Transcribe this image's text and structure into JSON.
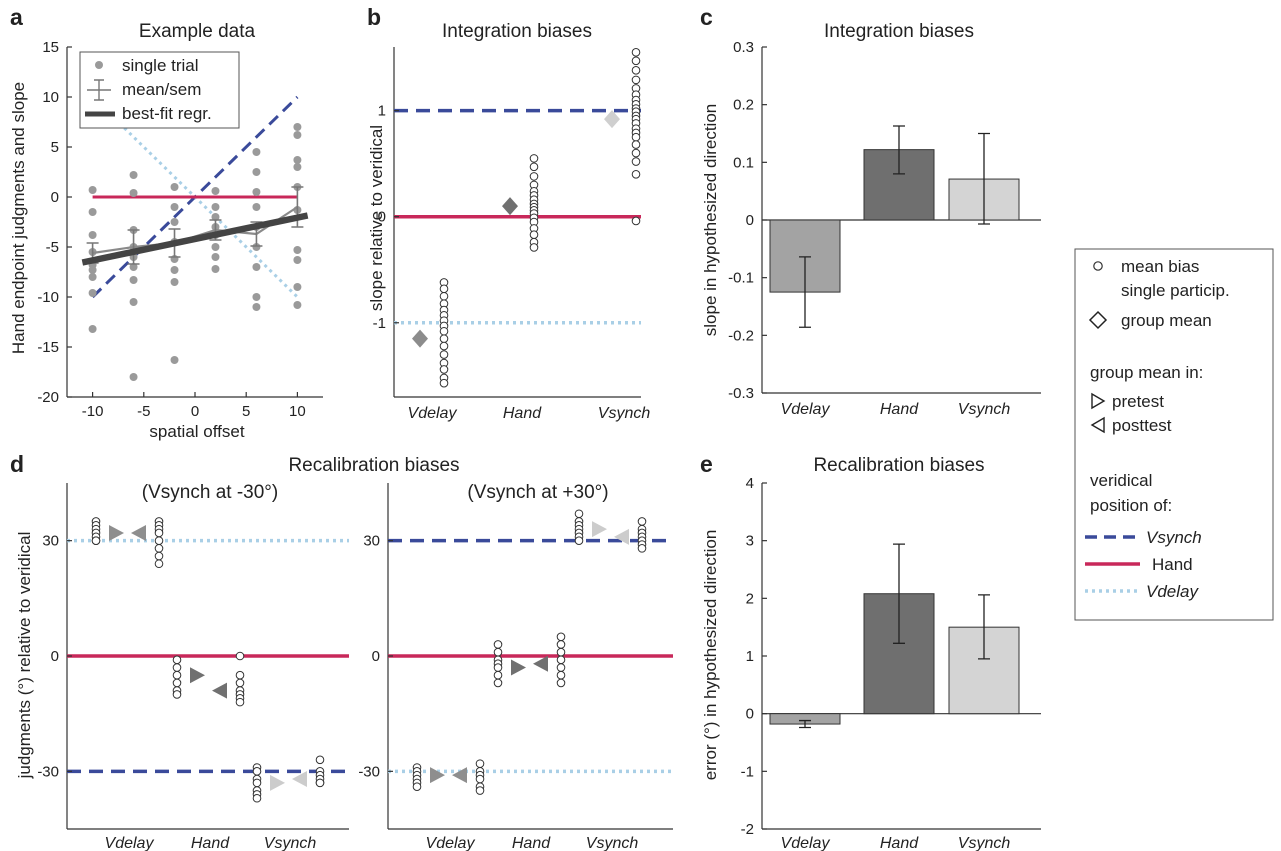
{
  "figure": {
    "panel_letters": [
      "a",
      "b",
      "c",
      "d",
      "e"
    ]
  },
  "colors": {
    "vsynch_line": "#3a4a9a",
    "hand_line": "#c8285a",
    "vdelay_line": "#a9cfe6",
    "vdelay_bar": "#a3a3a3",
    "hand_bar": "#6f6f6f",
    "vsynch_bar": "#d4d4d4",
    "single_trial": "#9a9a9a",
    "regression": "#444444"
  },
  "legend": {
    "mean_bias": "mean bias",
    "single_particip": "single particip.",
    "group_mean": "group mean",
    "group_mean_in": "group mean in:",
    "pretest": "pretest",
    "posttest": "posttest",
    "veridical": "veridical",
    "position_of": "position of:",
    "vsynch": "Vsynch",
    "hand": "Hand",
    "vdelay": "Vdelay"
  },
  "chart_data": [
    {
      "panel": "a",
      "type": "scatter",
      "title": "Example data",
      "xlabel": "spatial offset",
      "ylabel": "Hand endpoint judgments and slope",
      "xlim": [
        -12.5,
        12.5
      ],
      "ylim": [
        -20,
        15
      ],
      "xticks": [
        -10,
        -5,
        0,
        5,
        10
      ],
      "yticks": [
        -20,
        -15,
        -10,
        -5,
        0,
        5,
        10,
        15
      ],
      "legend_entries": [
        "single trial",
        "mean/sem",
        "best-fit regr."
      ],
      "x": [
        -10,
        -6,
        -2,
        2,
        6,
        10
      ],
      "single_trials": [
        [
          0.7,
          -1.5,
          -3.8,
          -5.5,
          -6.8,
          -7.3,
          -8.0,
          -9.6,
          -13.2
        ],
        [
          2.2,
          0.4,
          -3.3,
          -5.0,
          -5.5,
          -6.0,
          -7.0,
          -8.3,
          -10.5,
          -18.0
        ],
        [
          1.0,
          -1.0,
          -2.5,
          -4.5,
          -6.2,
          -7.3,
          -8.5,
          -16.3
        ],
        [
          0.6,
          -1.0,
          -2.0,
          -3.0,
          -3.8,
          -5.0,
          -6.0,
          -7.2
        ],
        [
          4.5,
          2.5,
          0.5,
          -1.0,
          -3.0,
          -5.0,
          -7.0,
          -10.0,
          -11.0
        ],
        [
          7.0,
          6.2,
          3.7,
          3.0,
          1.0,
          -1.3,
          -5.3,
          -6.3,
          -9.0,
          -10.8
        ]
      ],
      "mean": [
        -5.6,
        -5.0,
        -4.6,
        -3.3,
        -3.7,
        -1.0
      ],
      "sem": [
        1.0,
        1.7,
        1.4,
        1.0,
        1.2,
        2.0
      ],
      "regression": {
        "x": [
          -11,
          11
        ],
        "y": [
          -6.55,
          -1.85
        ]
      },
      "veridical_lines": {
        "vsynch": {
          "x": [
            -10,
            10
          ],
          "y": [
            -10,
            10
          ]
        },
        "hand": {
          "x": [
            -10,
            10
          ],
          "y": [
            0,
            0
          ]
        },
        "vdelay": {
          "x": [
            -6.9,
            10
          ],
          "y": [
            6.9,
            -10
          ]
        }
      }
    },
    {
      "panel": "b",
      "type": "scatter",
      "title": "Integration biases",
      "ylabel": "slope relative to veridical",
      "categories": [
        "Vdelay",
        "Hand",
        "Vsynch"
      ],
      "ylim": [
        -1.7,
        1.6
      ],
      "yticks": [
        -1,
        0,
        1
      ],
      "participants": [
        [
          -0.62,
          -0.68,
          -0.75,
          -0.82,
          -0.88,
          -0.93,
          -0.98,
          -1.03,
          -1.08,
          -1.15,
          -1.22,
          -1.3,
          -1.38,
          -1.44,
          -1.52,
          -1.57
        ],
        [
          0.55,
          0.47,
          0.38,
          0.3,
          0.24,
          0.2,
          0.16,
          0.12,
          0.09,
          0.06,
          0.03,
          -0.01,
          -0.05,
          -0.11,
          -0.17,
          -0.24,
          -0.29
        ],
        [
          1.55,
          1.47,
          1.38,
          1.29,
          1.21,
          1.15,
          1.1,
          1.06,
          1.02,
          0.99,
          0.95,
          0.92,
          0.88,
          0.83,
          0.79,
          0.75,
          0.68,
          0.6,
          0.52,
          0.4,
          -0.04
        ]
      ],
      "group_mean": [
        -1.15,
        0.1,
        0.92
      ],
      "veridical": {
        "vsynch": 1,
        "hand": 0,
        "vdelay": -1
      }
    },
    {
      "panel": "c",
      "type": "bar",
      "title": "Integration biases",
      "ylabel": "slope in hypothesized direction",
      "categories": [
        "Vdelay",
        "Hand",
        "Vsynch"
      ],
      "values": [
        -0.125,
        0.122,
        0.071
      ],
      "err_low": [
        -0.186,
        0.08,
        -0.007
      ],
      "err_high": [
        -0.064,
        0.163,
        0.15
      ],
      "ylim": [
        -0.3,
        0.3
      ],
      "yticks": [
        -0.3,
        -0.2,
        -0.1,
        0,
        0.1,
        0.2,
        0.3
      ]
    },
    {
      "panel": "d",
      "type": "scatter",
      "title": "Recalibration biases",
      "ylabel": "judgments (°) relative to veridical",
      "categories": [
        "Vdelay",
        "Hand",
        "Vsynch"
      ],
      "ylim": [
        -45,
        45
      ],
      "yticks": [
        -30,
        0,
        30
      ],
      "subplots": [
        {
          "subtitle": "(Vsynch at -30°)",
          "veridical": {
            "vdelay": 30,
            "hand": 0,
            "vsynch": -30
          },
          "pretest_participants": [
            [
              35,
              34,
              33,
              32,
              31,
              30,
              30
            ],
            [
              -1,
              -3,
              -5,
              -7,
              -9,
              -10
            ],
            [
              -29,
              -30,
              -32,
              -33,
              -35,
              -36,
              -37
            ]
          ],
          "posttest_participants": [
            [
              35,
              34,
              33,
              32,
              30,
              28,
              26,
              24
            ],
            [
              0,
              -5,
              -7,
              -9,
              -10,
              -11,
              -12
            ],
            [
              -27,
              -30,
              -31,
              -32,
              -33,
              -33
            ]
          ],
          "pretest_mean": [
            32,
            -5,
            -33
          ],
          "posttest_mean": [
            32,
            -9,
            -32
          ]
        },
        {
          "subtitle": "(Vsynch at +30°)",
          "veridical": {
            "vdelay": -30,
            "hand": 0,
            "vsynch": 30
          },
          "pretest_participants": [
            [
              -29,
              -30,
              -31,
              -32,
              -33,
              -34
            ],
            [
              3,
              1,
              -1,
              -2,
              -3,
              -5,
              -7
            ],
            [
              37,
              35,
              34,
              33,
              32,
              31,
              30
            ]
          ],
          "posttest_participants": [
            [
              -28,
              -30,
              -31,
              -32,
              -34,
              -35
            ],
            [
              5,
              3,
              1,
              -1,
              -3,
              -5,
              -7
            ],
            [
              35,
              33,
              32,
              31,
              30,
              29,
              28
            ]
          ],
          "pretest_mean": [
            -31,
            -3,
            33
          ],
          "posttest_mean": [
            -31,
            -2,
            31
          ]
        }
      ]
    },
    {
      "panel": "e",
      "type": "bar",
      "title": "Recalibration biases",
      "ylabel": "error (°) in hypothesized direction",
      "categories": [
        "Vdelay",
        "Hand",
        "Vsynch"
      ],
      "values": [
        -0.18,
        2.08,
        1.5
      ],
      "err_low": [
        -0.24,
        1.22,
        0.95
      ],
      "err_high": [
        -0.12,
        2.94,
        2.06
      ],
      "ylim": [
        -2,
        4
      ],
      "yticks": [
        -2,
        -1,
        0,
        1,
        2,
        3,
        4
      ]
    }
  ]
}
